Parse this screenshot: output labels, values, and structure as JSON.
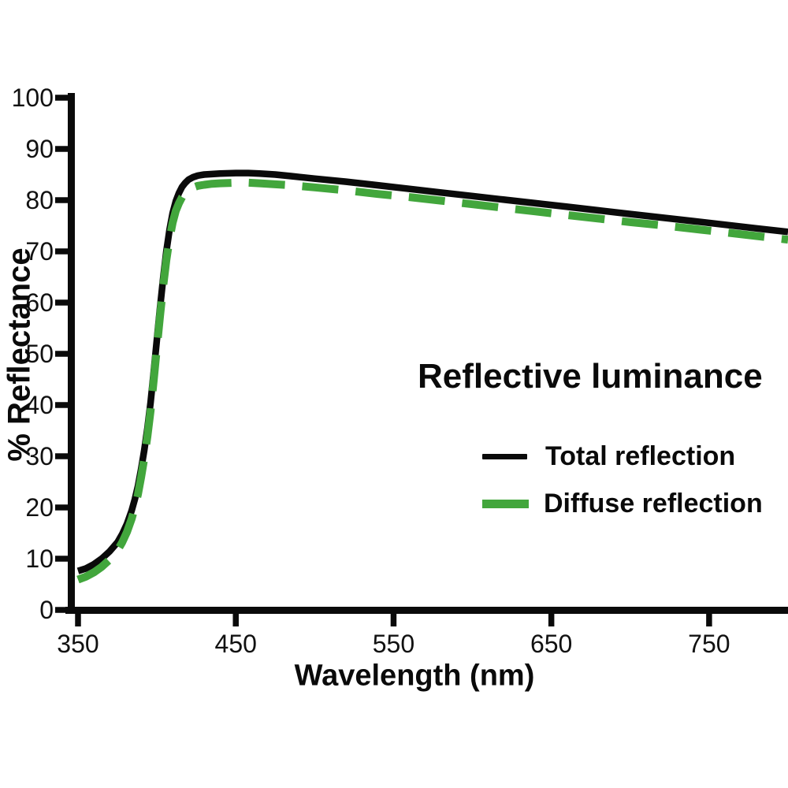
{
  "chart": {
    "axis_color": "#0a0a0a",
    "background": "#ffffff",
    "tick_label_color": "#111111"
  },
  "chart_data": {
    "type": "line",
    "title": "Reflective luminance",
    "xlabel": "Wavelength (nm)",
    "ylabel": "% Reflectance",
    "xlim": [
      350,
      800
    ],
    "ylim": [
      0,
      100
    ],
    "x_ticks": [
      350,
      450,
      550,
      650,
      750
    ],
    "y_ticks": [
      0,
      10,
      20,
      30,
      40,
      50,
      60,
      70,
      80,
      90,
      100
    ],
    "grid": false,
    "legend_position": "center-right-inside",
    "series": [
      {
        "name": "Total reflection",
        "color": "#0a0a0a",
        "style": "solid",
        "points": [
          [
            350,
            7.6
          ],
          [
            355,
            8.1
          ],
          [
            360,
            8.9
          ],
          [
            365,
            10.0
          ],
          [
            370,
            11.4
          ],
          [
            375,
            13.2
          ],
          [
            378,
            14.8
          ],
          [
            381,
            16.8
          ],
          [
            384,
            19.4
          ],
          [
            386,
            21.6
          ],
          [
            388,
            24.2
          ],
          [
            390,
            27.5
          ],
          [
            392,
            31.2
          ],
          [
            394,
            35.5
          ],
          [
            396,
            40.5
          ],
          [
            398,
            46.5
          ],
          [
            400,
            52.8
          ],
          [
            402,
            59.0
          ],
          [
            404,
            64.8
          ],
          [
            406,
            70.0
          ],
          [
            408,
            74.2
          ],
          [
            410,
            77.5
          ],
          [
            412,
            79.8
          ],
          [
            414,
            81.4
          ],
          [
            416,
            82.6
          ],
          [
            418,
            83.4
          ],
          [
            420,
            84.0
          ],
          [
            423,
            84.5
          ],
          [
            426,
            84.8
          ],
          [
            430,
            85.0
          ],
          [
            435,
            85.1
          ],
          [
            440,
            85.2
          ],
          [
            450,
            85.3
          ],
          [
            458,
            85.3
          ],
          [
            465,
            85.2
          ],
          [
            475,
            85.0
          ],
          [
            485,
            84.7
          ],
          [
            500,
            84.2
          ],
          [
            520,
            83.6
          ],
          [
            540,
            82.9
          ],
          [
            560,
            82.2
          ],
          [
            580,
            81.5
          ],
          [
            600,
            80.8
          ],
          [
            620,
            80.1
          ],
          [
            640,
            79.4
          ],
          [
            660,
            78.7
          ],
          [
            680,
            78.0
          ],
          [
            700,
            77.3
          ],
          [
            720,
            76.6
          ],
          [
            740,
            75.9
          ],
          [
            760,
            75.2
          ],
          [
            780,
            74.5
          ],
          [
            800,
            73.8
          ]
        ]
      },
      {
        "name": "Diffuse reflection",
        "color": "#42a63c",
        "style": "dashed",
        "points": [
          [
            350,
            5.9
          ],
          [
            355,
            6.5
          ],
          [
            360,
            7.3
          ],
          [
            365,
            8.4
          ],
          [
            370,
            9.8
          ],
          [
            375,
            11.6
          ],
          [
            378,
            13.2
          ],
          [
            381,
            15.2
          ],
          [
            384,
            17.8
          ],
          [
            386,
            20.0
          ],
          [
            388,
            22.6
          ],
          [
            390,
            25.9
          ],
          [
            392,
            29.6
          ],
          [
            394,
            33.9
          ],
          [
            396,
            38.9
          ],
          [
            398,
            44.9
          ],
          [
            400,
            51.2
          ],
          [
            402,
            57.4
          ],
          [
            404,
            63.2
          ],
          [
            406,
            68.3
          ],
          [
            408,
            72.4
          ],
          [
            410,
            75.6
          ],
          [
            412,
            77.9
          ],
          [
            414,
            79.4
          ],
          [
            416,
            80.6
          ],
          [
            418,
            81.4
          ],
          [
            420,
            82.0
          ],
          [
            423,
            82.5
          ],
          [
            426,
            82.8
          ],
          [
            430,
            83.0
          ],
          [
            435,
            83.2
          ],
          [
            440,
            83.3
          ],
          [
            450,
            83.4
          ],
          [
            458,
            83.4
          ],
          [
            465,
            83.3
          ],
          [
            475,
            83.1
          ],
          [
            485,
            82.9
          ],
          [
            500,
            82.5
          ],
          [
            520,
            81.9
          ],
          [
            540,
            81.2
          ],
          [
            560,
            80.6
          ],
          [
            580,
            79.9
          ],
          [
            600,
            79.2
          ],
          [
            620,
            78.5
          ],
          [
            640,
            77.8
          ],
          [
            660,
            77.1
          ],
          [
            680,
            76.4
          ],
          [
            700,
            75.7
          ],
          [
            720,
            75.1
          ],
          [
            740,
            74.4
          ],
          [
            760,
            73.7
          ],
          [
            780,
            73.0
          ],
          [
            800,
            72.3
          ]
        ]
      }
    ]
  }
}
